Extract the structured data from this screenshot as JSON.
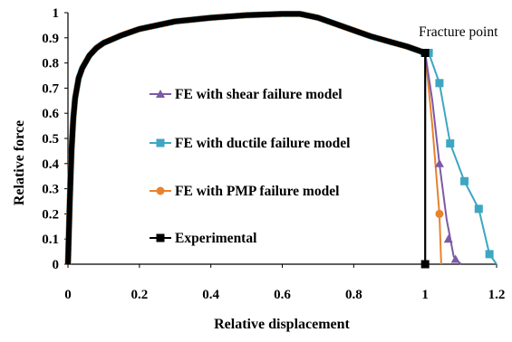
{
  "chart_data": {
    "type": "line",
    "title": "",
    "xlabel": "Relative displacement",
    "ylabel": "Relative force",
    "xlim": [
      0,
      1.2
    ],
    "ylim": [
      0,
      1
    ],
    "xticks": [
      "0",
      "0.2",
      "0.4",
      "0.6",
      "0.8",
      "1",
      "1.2"
    ],
    "yticks": [
      "0",
      "0.1",
      "0.2",
      "0.3",
      "0.4",
      "0.5",
      "0.6",
      "0.7",
      "0.8",
      "0.9",
      "1"
    ],
    "grid": false,
    "legend_position": "center-left",
    "annotation": {
      "text": "Fracture point",
      "x": 1.0,
      "y": 0.84
    },
    "common_curve": {
      "x": [
        0,
        0.005,
        0.01,
        0.015,
        0.02,
        0.03,
        0.04,
        0.06,
        0.08,
        0.1,
        0.15,
        0.2,
        0.3,
        0.4,
        0.5,
        0.6,
        0.65,
        0.7,
        0.75,
        0.8,
        0.85,
        0.9,
        0.95,
        1.0
      ],
      "y": [
        0,
        0.25,
        0.45,
        0.58,
        0.66,
        0.74,
        0.78,
        0.83,
        0.86,
        0.88,
        0.91,
        0.935,
        0.965,
        0.98,
        0.99,
        0.995,
        0.995,
        0.98,
        0.955,
        0.93,
        0.905,
        0.885,
        0.865,
        0.84
      ]
    },
    "series": [
      {
        "name": "FE with shear failure model",
        "color": "#7b5aa6",
        "marker": "triangle",
        "tail_x": [
          1.0,
          1.02,
          1.04,
          1.06,
          1.08,
          1.1
        ],
        "tail_y": [
          0.84,
          0.65,
          0.4,
          0.18,
          0.03,
          0.0
        ],
        "marker_points": [
          [
            1.04,
            0.4
          ],
          [
            1.065,
            0.1
          ],
          [
            1.085,
            0.02
          ]
        ]
      },
      {
        "name": "FE with ductile failure model",
        "color": "#3ea6c2",
        "marker": "square",
        "tail_x": [
          1.0,
          1.01,
          1.04,
          1.07,
          1.11,
          1.15,
          1.18,
          1.2
        ],
        "tail_y": [
          0.84,
          0.84,
          0.72,
          0.48,
          0.33,
          0.22,
          0.04,
          0.0
        ],
        "marker_points": [
          [
            1.01,
            0.84
          ],
          [
            1.04,
            0.72
          ],
          [
            1.07,
            0.48
          ],
          [
            1.11,
            0.33
          ],
          [
            1.15,
            0.22
          ],
          [
            1.18,
            0.04
          ]
        ]
      },
      {
        "name": "FE with PMP failure model",
        "color": "#e8822e",
        "marker": "circle",
        "tail_x": [
          1.0,
          1.02,
          1.04,
          1.045
        ],
        "tail_y": [
          0.84,
          0.55,
          0.2,
          0.0
        ],
        "marker_points": [
          [
            1.04,
            0.2
          ]
        ]
      },
      {
        "name": "Experimental",
        "color": "#000000",
        "marker": "square",
        "tail_x": [
          1.0,
          1.0
        ],
        "tail_y": [
          0.84,
          0.0
        ],
        "marker_points": [
          [
            1.0,
            0.84
          ],
          [
            1.0,
            0.0
          ]
        ]
      }
    ]
  }
}
